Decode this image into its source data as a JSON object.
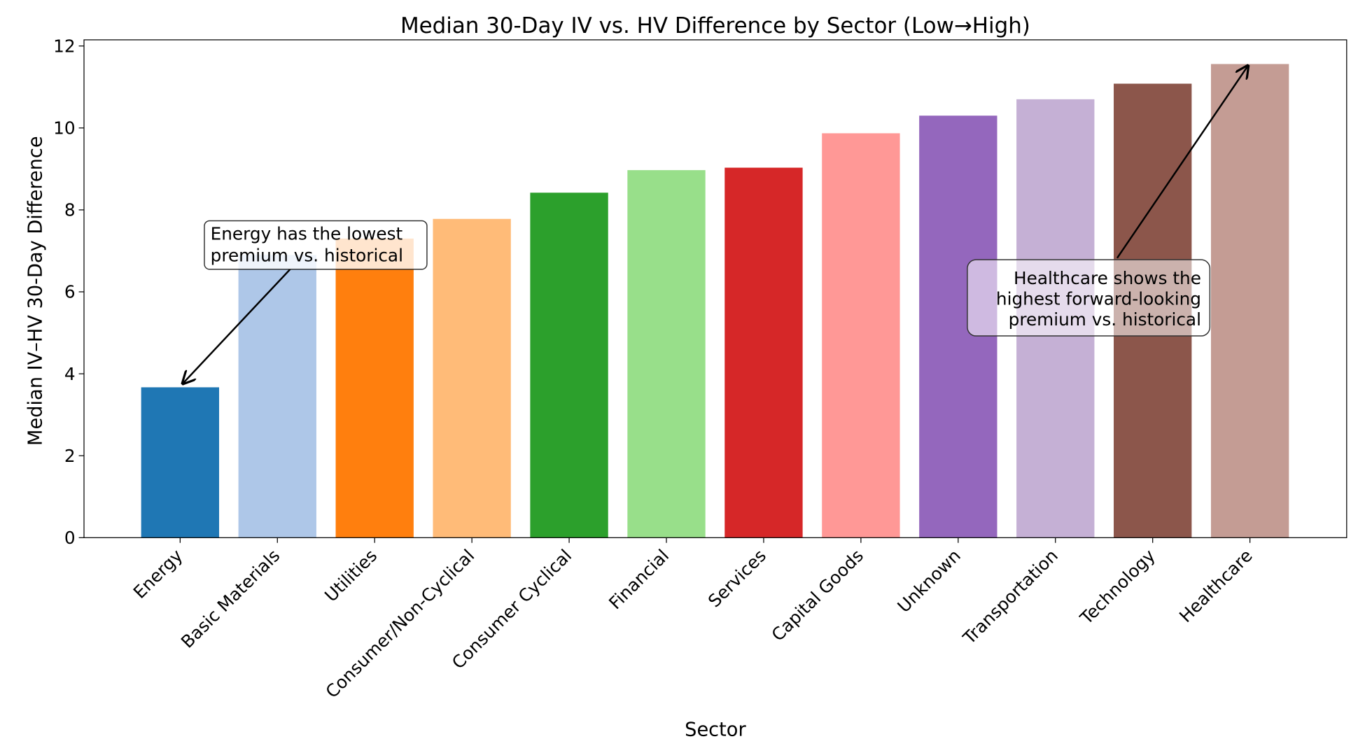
{
  "chart_data": {
    "type": "bar",
    "title": "Median 30-Day IV vs. HV Difference by Sector (Low→High)",
    "xlabel": "Sector",
    "ylabel": "Median IV–HV 30-Day Difference",
    "ylim": [
      0,
      12.15
    ],
    "yticks": [
      "0",
      "2",
      "4",
      "6",
      "8",
      "10",
      "12"
    ],
    "grid": false,
    "categories": [
      "Energy",
      "Basic Materials",
      "Utilities",
      "Consumer/Non-Cyclical",
      "Consumer Cyclical",
      "Financial",
      "Services",
      "Capital Goods",
      "Unknown",
      "Transportation",
      "Technology",
      "Healthcare"
    ],
    "values": [
      3.67,
      6.9,
      7.3,
      7.78,
      8.42,
      8.97,
      9.03,
      9.87,
      10.3,
      10.7,
      11.08,
      11.56
    ],
    "colors": [
      "#1f77b4",
      "#aec7e8",
      "#ff7f0e",
      "#ffbb78",
      "#2ca02c",
      "#98df8a",
      "#d62728",
      "#ff9896",
      "#9467bd",
      "#c5b0d5",
      "#8c564b",
      "#c49c94"
    ],
    "annotations": [
      {
        "lines": [
          "Energy has the lowest",
          "premium vs. historical"
        ],
        "target": "Energy"
      },
      {
        "lines": [
          "Healthcare shows the",
          "highest forward-looking",
          "premium vs. historical"
        ],
        "target": "Healthcare"
      }
    ]
  }
}
